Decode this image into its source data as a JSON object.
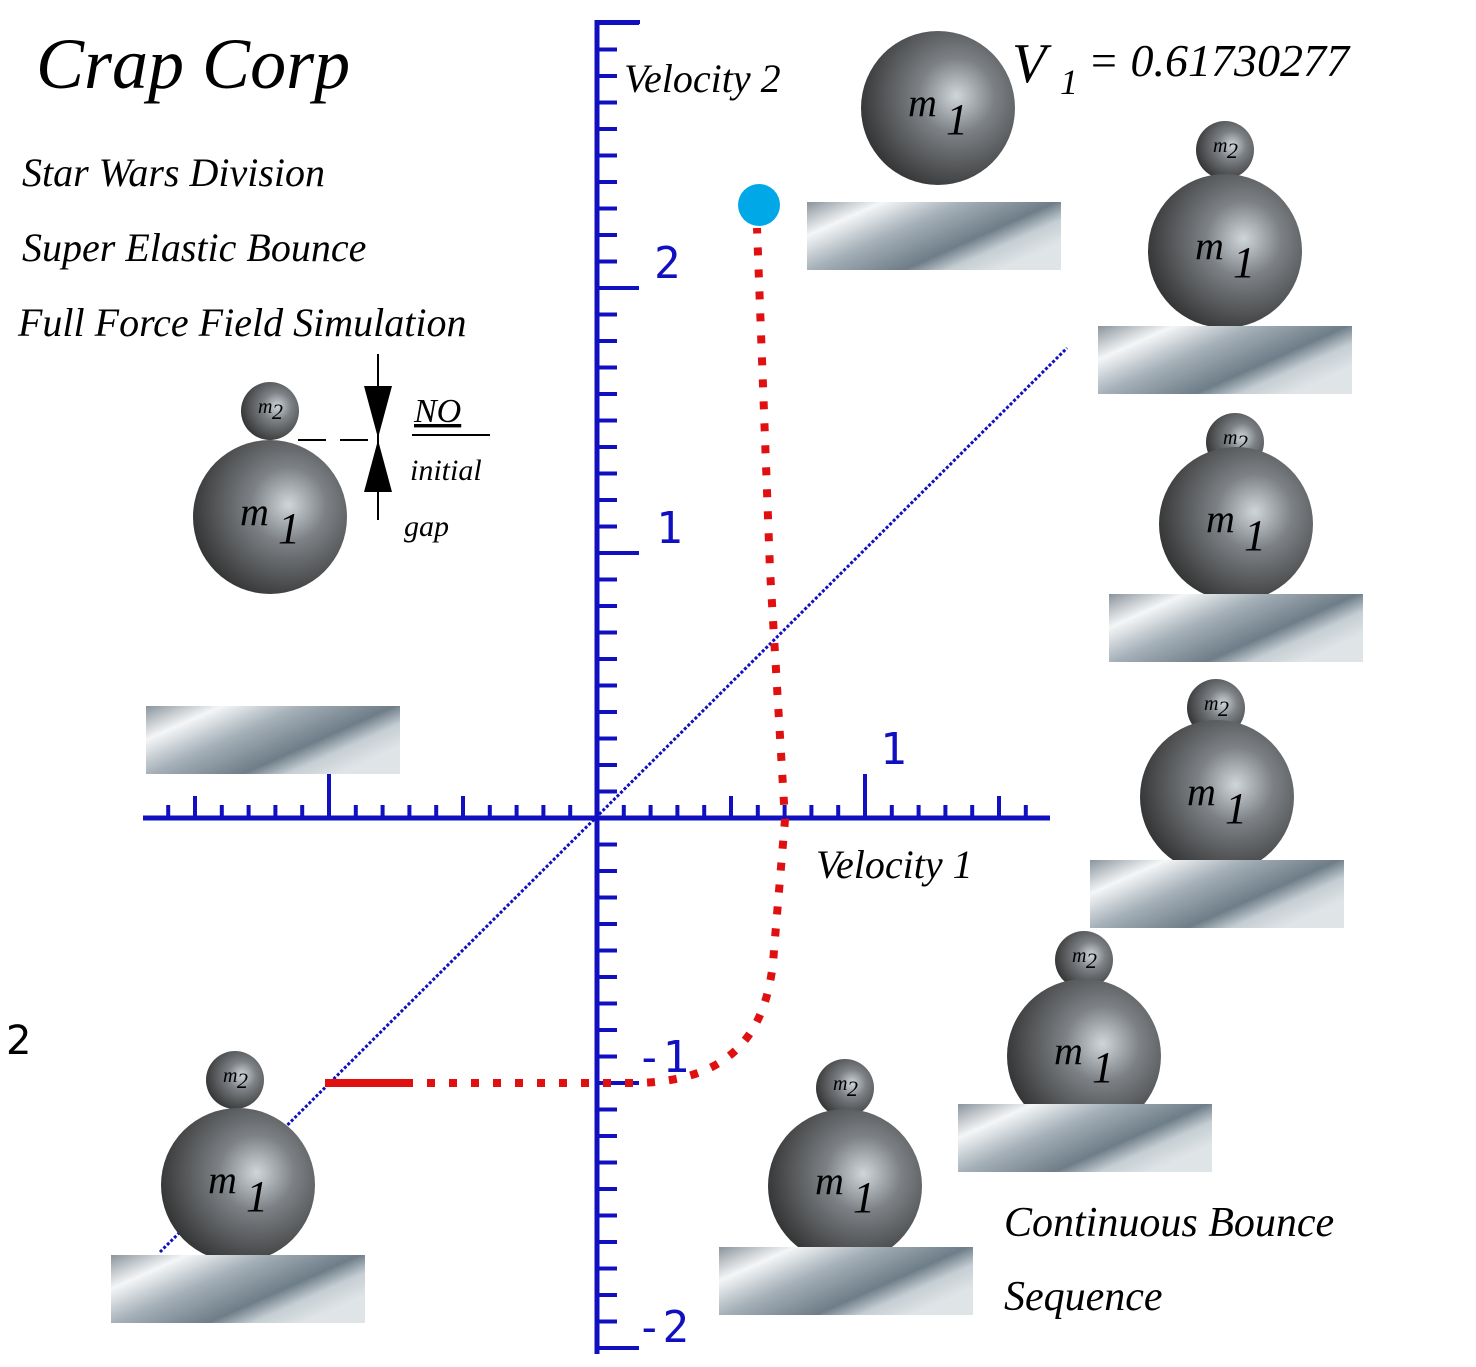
{
  "header": {
    "title": "Crap Corp",
    "lines": [
      "Star Wars Division",
      "Super Elastic Bounce",
      "Full Force Field Simulation"
    ]
  },
  "readout": {
    "symbol": "V",
    "subscript": "1",
    "value": "= 0.61730277"
  },
  "axes": {
    "y_label": "Velocity 2",
    "x_label": "Velocity 1",
    "y_tick_labels": [
      "2",
      "1",
      "-1",
      "-2"
    ],
    "x_tick_labels": [
      "1"
    ]
  },
  "gap_note": {
    "top": "NO",
    "middle": "initial",
    "bottom": "gap"
  },
  "ball_labels": {
    "large": "m",
    "large_sub": "1",
    "small": "m",
    "small_sub": "2"
  },
  "caption": [
    "Continuous Bounce",
    "Sequence"
  ],
  "side_label": "2"
}
